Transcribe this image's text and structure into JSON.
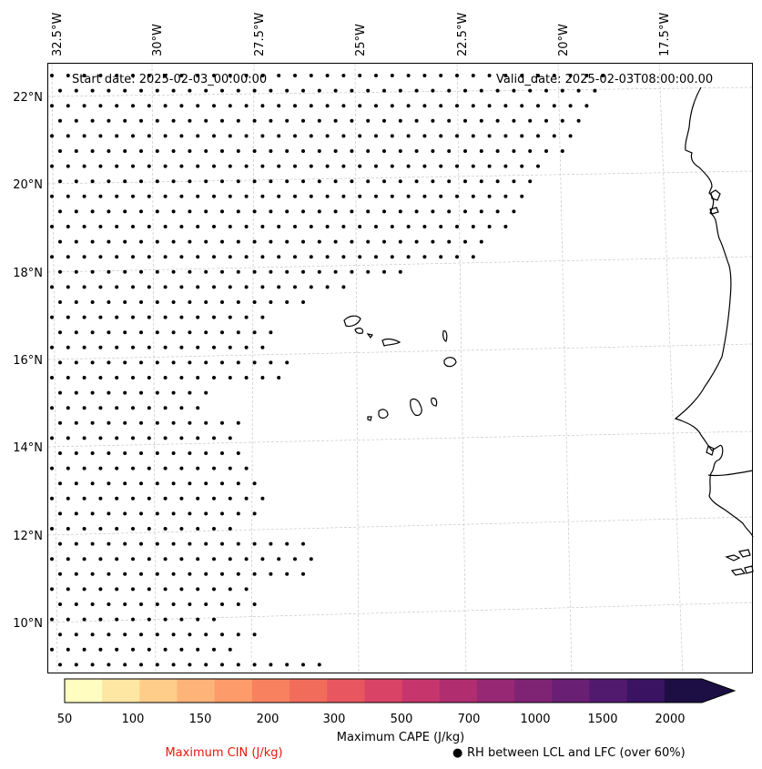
{
  "map": {
    "start_date_text": "Start date: 2025-02-03_00:00:00",
    "valid_date_text": "Valid_date: 2025-02-03T08:00:00.00",
    "lon_labels": [
      "32.5°W",
      "30°W",
      "27.5°W",
      "25°W",
      "22.5°W",
      "20°W",
      "17.5°W"
    ],
    "lat_labels": [
      "22°N",
      "20°N",
      "18°N",
      "16°N",
      "14°N",
      "12°N",
      "10°N"
    ],
    "coastline_color": "#000000",
    "gridline_color": "#c8c8c8"
  },
  "colorbar": {
    "title": "Maximum CAPE (J/kg)",
    "tick_labels": [
      "50",
      "100",
      "150",
      "200",
      "300",
      "500",
      "700",
      "1000",
      "1500",
      "2000"
    ],
    "colors": [
      "#fffdc0",
      "#fee6a3",
      "#fecd89",
      "#feb378",
      "#fd9b6a",
      "#f8825f",
      "#f26c5c",
      "#e8575f",
      "#d94466",
      "#c6366c",
      "#b02e70",
      "#972873",
      "#7f2475",
      "#691f74",
      "#521a6f",
      "#3a1462",
      "#1d0f44"
    ]
  },
  "legend": {
    "cin_label": "Maximum CIN (J/kg)",
    "cin_color": "#e8160c",
    "rh_marker": "●",
    "rh_label": "RH between LCL and LFC (over 60%)"
  }
}
